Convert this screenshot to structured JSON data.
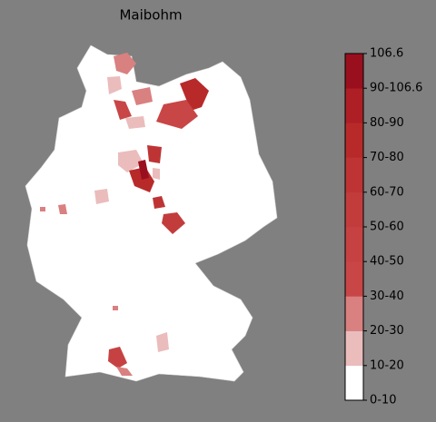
{
  "title": "Maibohm",
  "colorbar": {
    "labels": [
      "0-10",
      "10-20",
      "20-30",
      "30-40",
      "40-50",
      "50-60",
      "60-70",
      "70-80",
      "80-90",
      "90-106.6",
      "106.6"
    ],
    "colors": [
      "#ffffff",
      "#ebbcbc",
      "#d98080",
      "#c84646",
      "#c64242",
      "#c33c3c",
      "#be3434",
      "#b82a2a",
      "#ad1f24",
      "#9a0f1e"
    ]
  }
}
